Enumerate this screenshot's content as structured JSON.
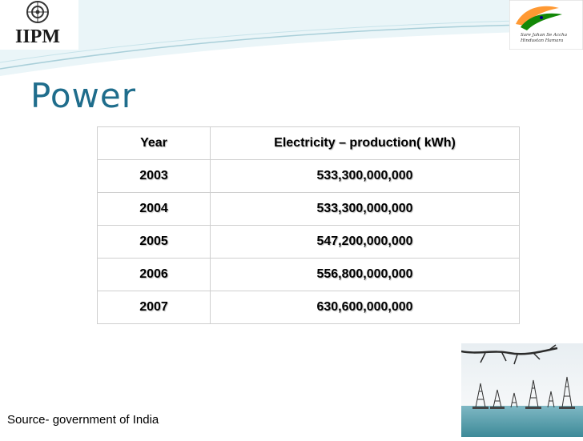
{
  "header": {
    "logo_left_text": "IIPM",
    "logo_right_text": "Sare Jahan Se Accha Hindustan Hamara"
  },
  "slide": {
    "title": "Power",
    "source": "Source- government of India"
  },
  "table": {
    "headers": [
      "Year",
      "Electricity – production( kWh)"
    ],
    "rows": [
      [
        "2003",
        "533,300,000,000"
      ],
      [
        "2004",
        "533,300,000,000"
      ],
      [
        "2005",
        "547,200,000,000"
      ],
      [
        "2006",
        "556,800,000,000"
      ],
      [
        "2007",
        "630,600,000,000"
      ]
    ]
  },
  "colors": {
    "title": "#1f6d8c",
    "banner_wave": "#dbeef4",
    "banner_line": "#a9cfd9"
  },
  "images": {
    "left_logo": "iipm-emblem-logo",
    "right_logo": "indian-flag-logo",
    "photo": "oil-rigs-in-sea-photo"
  }
}
